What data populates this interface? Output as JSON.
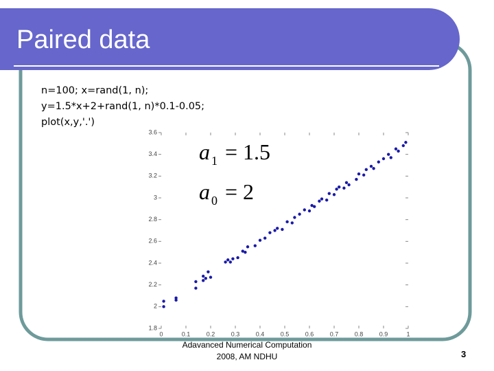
{
  "slide": {
    "title": "Paired data",
    "code": [
      "n=100; x=rand(1, n);",
      "y=1.5*x+2+rand(1, n)*0.1-0.05;",
      "plot(x,y,'.')"
    ],
    "footer": [
      "Adavanced Numerical Computation",
      "2008, AM NDHU"
    ],
    "page_number": "3"
  },
  "chart_data": {
    "type": "scatter",
    "annotations": [
      {
        "symbol": "a",
        "subscript": "1",
        "rhs": "= 1.5"
      },
      {
        "symbol": "a",
        "subscript": "0",
        "rhs": "= 2"
      }
    ],
    "color": "#1a1aa8",
    "xlim": [
      0,
      1
    ],
    "ylim": [
      1.8,
      3.6
    ],
    "xticks": [
      0,
      0.1,
      0.2,
      0.3,
      0.4,
      0.5,
      0.6,
      0.7,
      0.8,
      0.9,
      1
    ],
    "yticks": [
      1.8,
      2,
      2.2,
      2.4,
      2.6,
      2.8,
      3,
      3.2,
      3.4,
      3.6
    ],
    "x": [
      0.01,
      0.01,
      0.06,
      0.06,
      0.14,
      0.14,
      0.17,
      0.17,
      0.18,
      0.19,
      0.2,
      0.26,
      0.27,
      0.28,
      0.29,
      0.31,
      0.33,
      0.34,
      0.35,
      0.38,
      0.4,
      0.42,
      0.44,
      0.46,
      0.47,
      0.49,
      0.51,
      0.53,
      0.54,
      0.56,
      0.58,
      0.6,
      0.61,
      0.62,
      0.64,
      0.65,
      0.67,
      0.68,
      0.7,
      0.71,
      0.72,
      0.74,
      0.75,
      0.76,
      0.79,
      0.8,
      0.82,
      0.83,
      0.85,
      0.86,
      0.88,
      0.9,
      0.92,
      0.93,
      0.95,
      0.96,
      0.98,
      0.99
    ],
    "values": [
      2.05,
      2.0,
      2.08,
      2.06,
      2.23,
      2.17,
      2.28,
      2.24,
      2.26,
      2.32,
      2.27,
      2.41,
      2.43,
      2.41,
      2.44,
      2.45,
      2.51,
      2.5,
      2.55,
      2.56,
      2.61,
      2.63,
      2.68,
      2.7,
      2.72,
      2.71,
      2.78,
      2.77,
      2.82,
      2.85,
      2.89,
      2.88,
      2.93,
      2.92,
      2.97,
      2.99,
      2.98,
      3.04,
      3.03,
      3.08,
      3.1,
      3.09,
      3.14,
      3.12,
      3.17,
      3.22,
      3.21,
      3.26,
      3.29,
      3.27,
      3.33,
      3.36,
      3.4,
      3.37,
      3.45,
      3.43,
      3.48,
      3.51
    ]
  }
}
